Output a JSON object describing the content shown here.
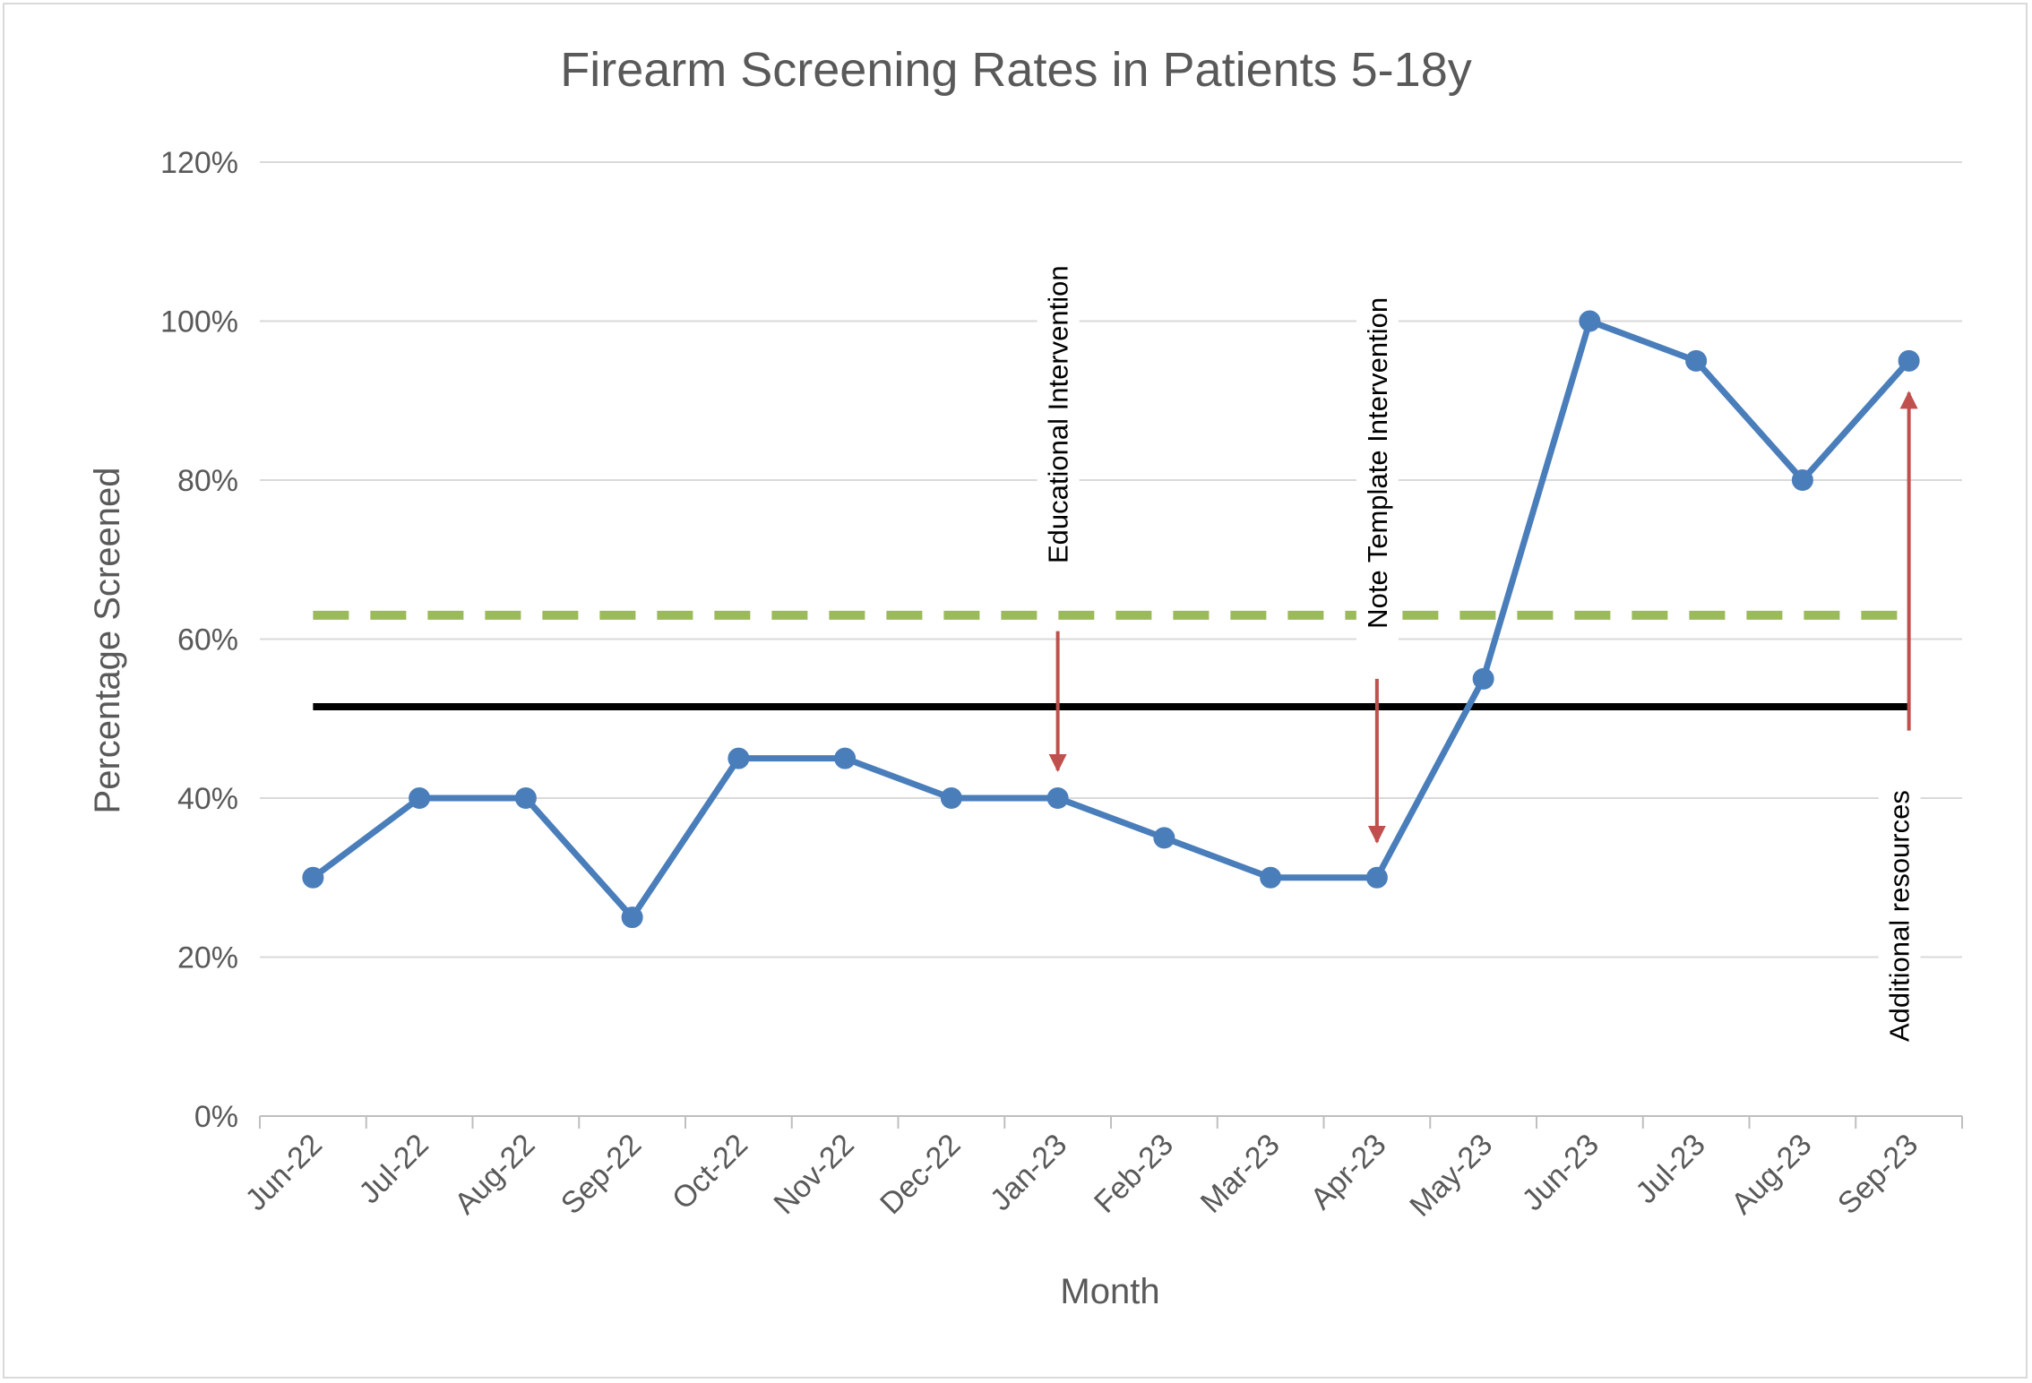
{
  "chart_data": {
    "type": "line",
    "title": "Firearm Screening Rates in Patients 5-18y",
    "xlabel": "Month",
    "ylabel": "Percentage Screened",
    "ylim": [
      0,
      120
    ],
    "yticks": [
      "0%",
      "20%",
      "40%",
      "60%",
      "80%",
      "100%",
      "120%"
    ],
    "ytick_values": [
      0,
      20,
      40,
      60,
      80,
      100,
      120
    ],
    "categories": [
      "Jun-22",
      "Jul-22",
      "Aug-22",
      "Sep-22",
      "Oct-22",
      "Nov-22",
      "Dec-22",
      "Jan-23",
      "Feb-23",
      "Mar-23",
      "Apr-23",
      "May-23",
      "Jun-23",
      "Jul-23",
      "Aug-23",
      "Sep-23"
    ],
    "grid": true,
    "legend": "none",
    "series": [
      {
        "values": [
          30,
          40,
          40,
          25,
          45,
          45,
          40,
          40,
          35,
          30,
          30,
          55,
          100,
          95,
          80,
          95
        ],
        "color": "#4a7ebb",
        "style": "line-markers"
      }
    ],
    "reference_lines": [
      {
        "value": 63,
        "color": "#9bbb59",
        "style": "dashed"
      },
      {
        "value": 51.5,
        "color": "#000000",
        "style": "solid"
      }
    ],
    "annotations": [
      {
        "text": "Educational Intervention",
        "category": "Jan-23",
        "arrow": "down",
        "arrow_from": 61,
        "arrow_to": 43.5,
        "text_top": 107
      },
      {
        "text": "Note Template Intervention",
        "category": "Apr-23",
        "arrow": "down",
        "arrow_from": 55,
        "arrow_to": 34.5,
        "text_top": 103
      },
      {
        "text": "Additional resources",
        "category": "Sep-23",
        "arrow": "up",
        "arrow_from": 48.5,
        "arrow_to": 91,
        "text_top": 41
      }
    ],
    "annotation_color": "#c0504d"
  }
}
